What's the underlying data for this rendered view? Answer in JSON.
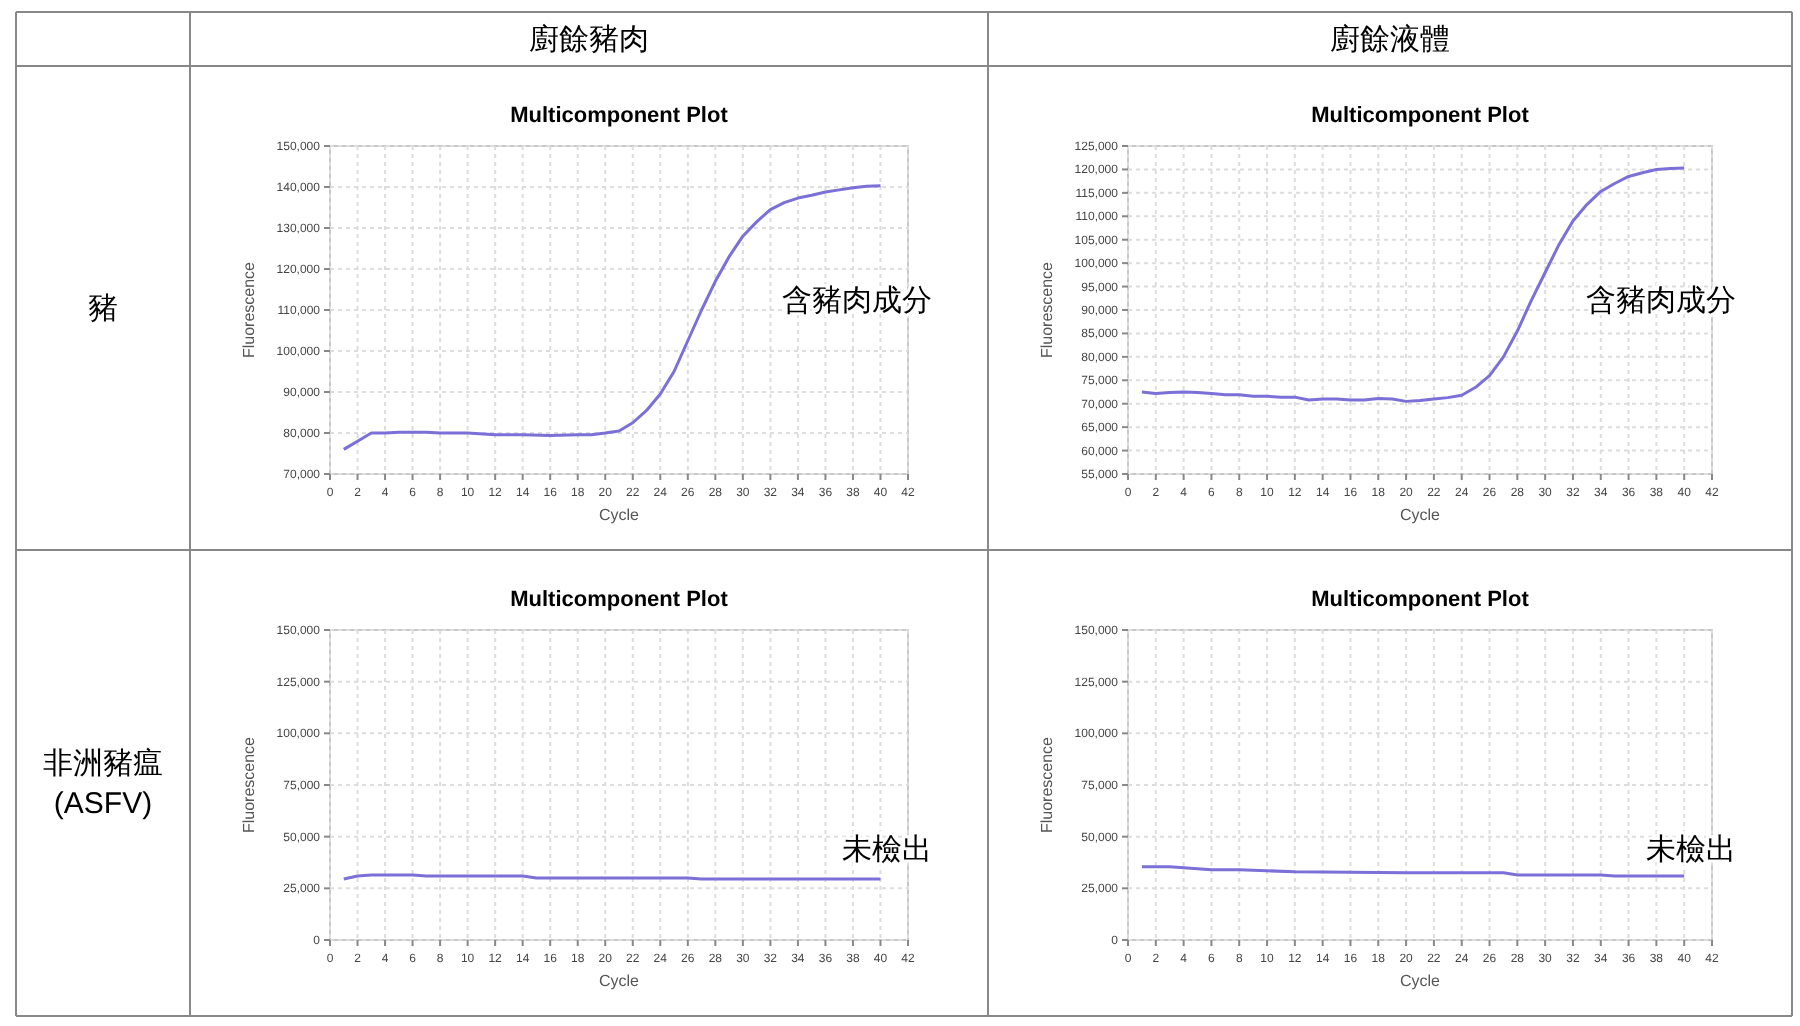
{
  "chart_data": [
    {
      "type": "line",
      "title": "Multicomponent Plot",
      "xlabel": "Cycle",
      "ylabel": "Fluorescence",
      "xlim": [
        0,
        42
      ],
      "xticks": [
        0,
        2,
        4,
        6,
        8,
        10,
        12,
        14,
        16,
        18,
        20,
        22,
        24,
        26,
        28,
        30,
        32,
        34,
        36,
        38,
        40,
        42
      ],
      "ylim": [
        70000,
        150000
      ],
      "yticks": [
        {
          "value": 70000,
          "label": "70,000"
        },
        {
          "value": 80000,
          "label": "80,000"
        },
        {
          "value": 90000,
          "label": "90,000"
        },
        {
          "value": 100000,
          "label": "100,000"
        },
        {
          "value": 110000,
          "label": "110,000"
        },
        {
          "value": 120000,
          "label": "120,000"
        },
        {
          "value": 130000,
          "label": "130,000"
        },
        {
          "value": 140000,
          "label": "140,000"
        },
        {
          "value": 150000,
          "label": "150,000"
        }
      ],
      "grid": true,
      "marker": "none",
      "line_style": "solid",
      "annotations": [
        "廚餘豬肉",
        "豬",
        "含豬肉成分"
      ],
      "series": [
        {
          "color": "#7b6fd8",
          "x": [
            1,
            2,
            3,
            4,
            5,
            6,
            7,
            8,
            10,
            12,
            14,
            16,
            18,
            19,
            20,
            21,
            22,
            23,
            24,
            25,
            26,
            27,
            28,
            29,
            30,
            31,
            32,
            33,
            34,
            35,
            36,
            37,
            38,
            39,
            40
          ],
          "values": [
            76000,
            78000,
            80000,
            80000,
            80200,
            80200,
            80200,
            80000,
            80000,
            79600,
            79600,
            79400,
            79600,
            79600,
            80000,
            80500,
            82500,
            85500,
            89500,
            95000,
            102500,
            110000,
            117000,
            123000,
            128000,
            131500,
            134500,
            136200,
            137300,
            138000,
            138800,
            139300,
            139800,
            140200,
            140300
          ]
        }
      ]
    },
    {
      "type": "line",
      "title": "Multicomponent Plot",
      "xlabel": "Cycle",
      "ylabel": "Fluorescence",
      "xlim": [
        0,
        42
      ],
      "xticks": [
        0,
        2,
        4,
        6,
        8,
        10,
        12,
        14,
        16,
        18,
        20,
        22,
        24,
        26,
        28,
        30,
        32,
        34,
        36,
        38,
        40,
        42
      ],
      "ylim": [
        55000,
        125000
      ],
      "yticks": [
        {
          "value": 55000,
          "label": "55,000"
        },
        {
          "value": 60000,
          "label": "60,000"
        },
        {
          "value": 65000,
          "label": "65,000"
        },
        {
          "value": 70000,
          "label": "70,000"
        },
        {
          "value": 75000,
          "label": "75,000"
        },
        {
          "value": 80000,
          "label": "80,000"
        },
        {
          "value": 85000,
          "label": "85,000"
        },
        {
          "value": 90000,
          "label": "90,000"
        },
        {
          "value": 95000,
          "label": "95,000"
        },
        {
          "value": 100000,
          "label": "100,000"
        },
        {
          "value": 105000,
          "label": "105,000"
        },
        {
          "value": 110000,
          "label": "110,000"
        },
        {
          "value": 115000,
          "label": "115,000"
        },
        {
          "value": 120000,
          "label": "120,000"
        },
        {
          "value": 125000,
          "label": "125,000"
        }
      ],
      "grid": true,
      "marker": "none",
      "line_style": "solid",
      "annotations": [
        "廚餘液體",
        "含豬肉成分"
      ],
      "series": [
        {
          "color": "#7b6fd8",
          "x": [
            1,
            2,
            3,
            4,
            5,
            6,
            7,
            8,
            9,
            10,
            11,
            12,
            13,
            14,
            15,
            16,
            17,
            18,
            19,
            20,
            21,
            22,
            23,
            24,
            25,
            26,
            27,
            28,
            29,
            30,
            31,
            32,
            33,
            34,
            35,
            36,
            37,
            38,
            39,
            40
          ],
          "values": [
            72500,
            72200,
            72400,
            72500,
            72400,
            72200,
            71900,
            71900,
            71600,
            71600,
            71400,
            71400,
            70800,
            71000,
            71000,
            70800,
            70800,
            71100,
            71000,
            70500,
            70700,
            71000,
            71300,
            71800,
            73500,
            76000,
            80000,
            85500,
            92000,
            98000,
            104000,
            109000,
            112500,
            115300,
            117000,
            118500,
            119300,
            120000,
            120200,
            120300
          ]
        }
      ]
    },
    {
      "type": "line",
      "title": "Multicomponent Plot",
      "xlabel": "Cycle",
      "ylabel": "Fluorescence",
      "xlim": [
        0,
        42
      ],
      "xticks": [
        0,
        2,
        4,
        6,
        8,
        10,
        12,
        14,
        16,
        18,
        20,
        22,
        24,
        26,
        28,
        30,
        32,
        34,
        36,
        38,
        40,
        42
      ],
      "ylim": [
        0,
        150000
      ],
      "yticks": [
        0,
        {
          "value": 25000,
          "label": "25,000"
        },
        {
          "value": 50000,
          "label": "50,000"
        },
        {
          "value": 75000,
          "label": "75,000"
        },
        {
          "value": 100000,
          "label": "100,000"
        },
        {
          "value": 125000,
          "label": "125,000"
        },
        {
          "value": 150000,
          "label": "150,000"
        }
      ],
      "grid": true,
      "marker": "none",
      "line_style": "solid",
      "annotations": [
        "非洲豬瘟\n(ASFV)",
        "未檢出"
      ],
      "series": [
        {
          "color": "#7b6fd8",
          "x": [
            1,
            2,
            3,
            4,
            6,
            7,
            8,
            14,
            15,
            26,
            27,
            40
          ],
          "values": [
            29500,
            31000,
            31500,
            31500,
            31500,
            31000,
            31000,
            31000,
            30000,
            30000,
            29500,
            29500
          ]
        }
      ]
    },
    {
      "type": "line",
      "title": "Multicomponent Plot",
      "xlabel": "Cycle",
      "ylabel": "Fluorescence",
      "xlim": [
        0,
        42
      ],
      "xticks": [
        0,
        2,
        4,
        6,
        8,
        10,
        12,
        14,
        16,
        18,
        20,
        22,
        24,
        26,
        28,
        30,
        32,
        34,
        36,
        38,
        40,
        42
      ],
      "ylim": [
        0,
        150000
      ],
      "yticks": [
        0,
        {
          "value": 25000,
          "label": "25,000"
        },
        {
          "value": 50000,
          "label": "50,000"
        },
        {
          "value": 75000,
          "label": "75,000"
        },
        {
          "value": 100000,
          "label": "100,000"
        },
        {
          "value": 125000,
          "label": "125,000"
        },
        {
          "value": 150000,
          "label": "150,000"
        }
      ],
      "grid": true,
      "marker": "none",
      "line_style": "solid",
      "annotations": [
        "未檢出"
      ],
      "series": [
        {
          "color": "#7b6fd8",
          "x": [
            1,
            3,
            4,
            6,
            8,
            10,
            12,
            20,
            27,
            28,
            34,
            35,
            40
          ],
          "values": [
            35500,
            35500,
            35000,
            34000,
            34000,
            33500,
            33000,
            32500,
            32500,
            31500,
            31500,
            31000,
            31000
          ]
        }
      ]
    }
  ]
}
